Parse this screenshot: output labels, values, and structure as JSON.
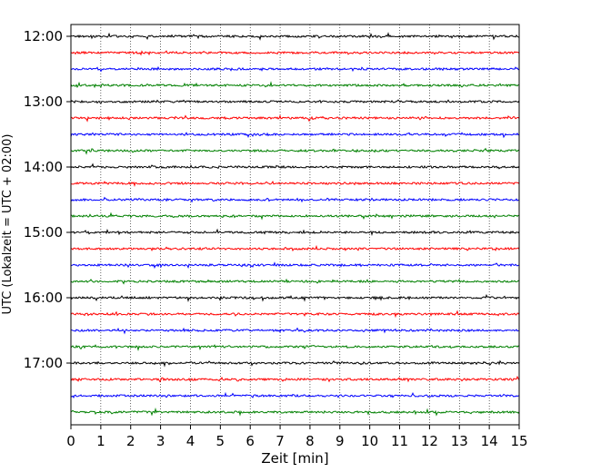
{
  "chart_data": {
    "type": "line",
    "title": "",
    "xlabel": "Zeit  [min]",
    "ylabel": "UTC (Lokalzeit = UTC + 02:00)",
    "xlim": [
      0,
      15
    ],
    "x_ticks": [
      "0",
      "1",
      "2",
      "3",
      "4",
      "5",
      "6",
      "7",
      "8",
      "9",
      "10",
      "11",
      "12",
      "13",
      "14",
      "15"
    ],
    "y_ticks": [
      "12:00",
      "13:00",
      "14:00",
      "15:00",
      "16:00",
      "17:00"
    ],
    "grid": "vertical dotted",
    "trace_colors": [
      "#000000",
      "#ff0000",
      "#0000ff",
      "#008000"
    ],
    "trace_minutes_per_line": 15,
    "traces_start": "12:00",
    "traces_end": "17:45",
    "trace_count": 24
  }
}
